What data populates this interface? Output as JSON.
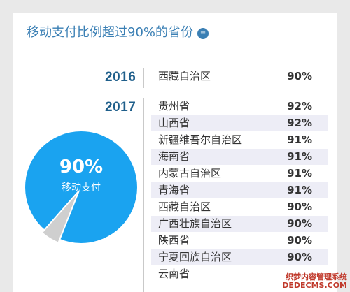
{
  "title": "移动支付比例超过90%的省份",
  "title_badge": "≡",
  "chart_data": {
    "type": "table",
    "pie": {
      "value": 90,
      "label_value": "90%",
      "label_text": "移动支付"
    },
    "groups": [
      {
        "year": "2016",
        "rows": [
          {
            "province": "西藏自治区",
            "value": "90%"
          }
        ]
      },
      {
        "year": "2017",
        "rows": [
          {
            "province": "贵州省",
            "value": "92%"
          },
          {
            "province": "山西省",
            "value": "92%"
          },
          {
            "province": "新疆维吾尔自治区",
            "value": "91%"
          },
          {
            "province": "海南省",
            "value": "91%"
          },
          {
            "province": "内蒙古自治区",
            "value": "91%"
          },
          {
            "province": "青海省",
            "value": "91%"
          },
          {
            "province": "西藏自治区",
            "value": "90%"
          },
          {
            "province": "广西壮族自治区",
            "value": "90%"
          },
          {
            "province": "陕西省",
            "value": "90%"
          },
          {
            "province": "宁夏回族自治区",
            "value": "90%"
          },
          {
            "province": "云南省",
            "value": ""
          }
        ]
      }
    ]
  },
  "colors": {
    "accent": "#3a7fb4",
    "pie_fill": "#1aa3f0",
    "pie_slice": "#cfcfcf",
    "shade": "#ededf6"
  },
  "watermark": {
    "line1": "织梦内容管理系统",
    "line2": "DEDECMS.COM"
  }
}
